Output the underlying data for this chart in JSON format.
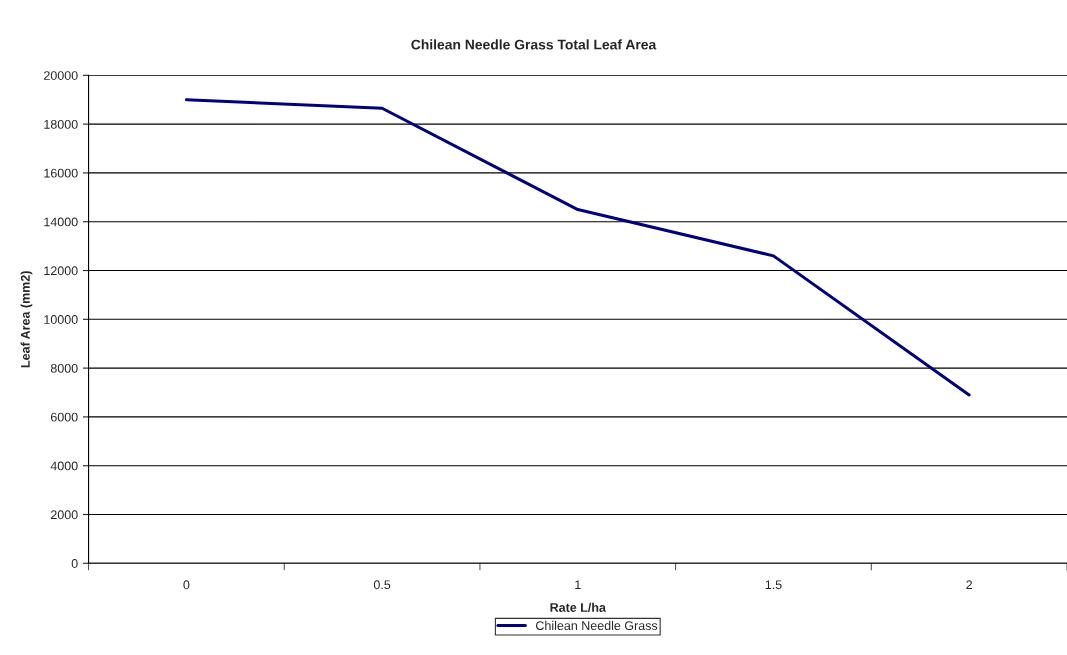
{
  "chart_data": {
    "type": "line",
    "title": "Chilean Needle Grass Total Leaf Area",
    "xlabel": "Rate L/ha",
    "ylabel": "Leaf Area (mm2)",
    "categories": [
      "0",
      "0.5",
      "1",
      "1.5",
      "2"
    ],
    "series": [
      {
        "name": "Chilean Needle Grass",
        "color": "#000080",
        "values": [
          19000,
          18650,
          14500,
          12600,
          6900
        ]
      }
    ],
    "ylim": [
      0,
      20000
    ],
    "yticks": [
      0,
      2000,
      4000,
      6000,
      8000,
      10000,
      12000,
      14000,
      16000,
      18000,
      20000
    ],
    "grid": "y",
    "legend": "bottom",
    "marker": "none",
    "line_style": "solid"
  }
}
